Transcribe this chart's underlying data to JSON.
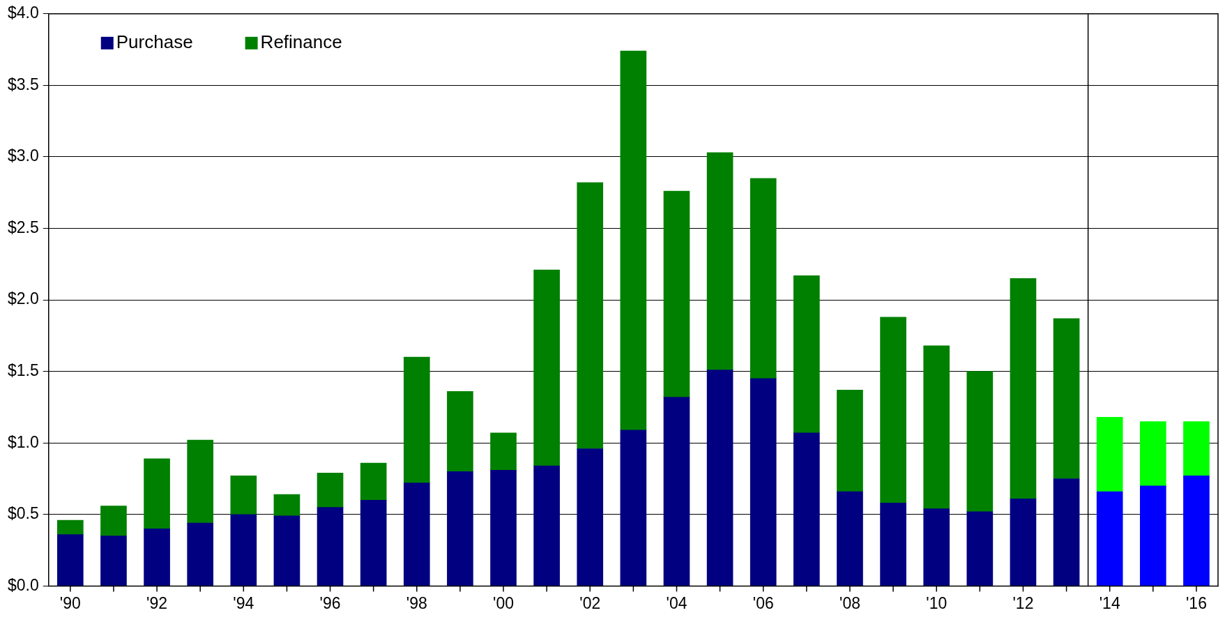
{
  "chart_data": {
    "type": "bar",
    "stacked": true,
    "x": [
      1990,
      1991,
      1992,
      1993,
      1994,
      1995,
      1996,
      1997,
      1998,
      1999,
      2000,
      2001,
      2002,
      2003,
      2004,
      2005,
      2006,
      2007,
      2008,
      2009,
      2010,
      2011,
      2012,
      2013,
      2014,
      2015,
      2016
    ],
    "xlim": [
      1989.5,
      2016.5
    ],
    "xticks": [
      {
        "value": 1990,
        "label": "'90"
      },
      {
        "value": 1991,
        "label": null
      },
      {
        "value": 1992,
        "label": "'92"
      },
      {
        "value": 1993,
        "label": null
      },
      {
        "value": 1994,
        "label": "'94"
      },
      {
        "value": 1995,
        "label": null
      },
      {
        "value": 1996,
        "label": "'96"
      },
      {
        "value": 1997,
        "label": null
      },
      {
        "value": 1998,
        "label": "'98"
      },
      {
        "value": 1999,
        "label": null
      },
      {
        "value": 2000,
        "label": "'00"
      },
      {
        "value": 2001,
        "label": null
      },
      {
        "value": 2002,
        "label": "'02"
      },
      {
        "value": 2003,
        "label": null
      },
      {
        "value": 2004,
        "label": "'04"
      },
      {
        "value": 2005,
        "label": null
      },
      {
        "value": 2006,
        "label": "'06"
      },
      {
        "value": 2007,
        "label": null
      },
      {
        "value": 2008,
        "label": "'08"
      },
      {
        "value": 2009,
        "label": null
      },
      {
        "value": 2010,
        "label": "'10"
      },
      {
        "value": 2011,
        "label": null
      },
      {
        "value": 2012,
        "label": "'12"
      },
      {
        "value": 2013,
        "label": null
      },
      {
        "value": 2014,
        "label": "'14"
      },
      {
        "value": 2015,
        "label": null
      },
      {
        "value": 2016,
        "label": "'16"
      }
    ],
    "series": [
      {
        "name": "Purchase",
        "color": "#000080",
        "colors": [
          "#000080",
          "#000080",
          "#000080",
          "#000080",
          "#000080",
          "#000080",
          "#000080",
          "#000080",
          "#000080",
          "#000080",
          "#000080",
          "#000080",
          "#000080",
          "#000080",
          "#000080",
          "#000080",
          "#000080",
          "#000080",
          "#000080",
          "#000080",
          "#000080",
          "#000080",
          "#000080",
          "#000080",
          "#0000ff",
          "#0000ff",
          "#0000ff"
        ],
        "values": [
          0.36,
          0.35,
          0.4,
          0.44,
          0.5,
          0.49,
          0.55,
          0.6,
          0.72,
          0.8,
          0.81,
          0.84,
          0.96,
          1.09,
          1.32,
          1.51,
          1.45,
          1.07,
          0.66,
          0.58,
          0.54,
          0.52,
          0.61,
          0.75,
          0.66,
          0.7,
          0.77
        ]
      },
      {
        "name": "Refinance",
        "color": "#008000",
        "colors": [
          "#008000",
          "#008000",
          "#008000",
          "#008000",
          "#008000",
          "#008000",
          "#008000",
          "#008000",
          "#008000",
          "#008000",
          "#008000",
          "#008000",
          "#008000",
          "#008000",
          "#008000",
          "#008000",
          "#008000",
          "#008000",
          "#008000",
          "#008000",
          "#008000",
          "#008000",
          "#008000",
          "#008000",
          "#00ff00",
          "#00ff00",
          "#00ff00"
        ],
        "values": [
          0.1,
          0.21,
          0.49,
          0.58,
          0.27,
          0.15,
          0.24,
          0.26,
          0.88,
          0.56,
          0.26,
          1.37,
          1.86,
          2.65,
          1.44,
          1.52,
          1.4,
          1.1,
          0.71,
          1.3,
          1.14,
          0.98,
          1.54,
          1.12,
          0.52,
          0.45,
          0.38
        ]
      }
    ],
    "ylim": [
      0,
      4
    ],
    "yticks": [
      {
        "value": 0,
        "label": "$0.0"
      },
      {
        "value": 0.5,
        "label": "$0.5"
      },
      {
        "value": 1,
        "label": "$1.0"
      },
      {
        "value": 1.5,
        "label": "$1.5"
      },
      {
        "value": 2,
        "label": "$2.0"
      },
      {
        "value": 2.5,
        "label": "$2.5"
      },
      {
        "value": 3,
        "label": "$3.0"
      },
      {
        "value": 3.5,
        "label": "$3.5"
      },
      {
        "value": 4,
        "label": "$4.0"
      }
    ],
    "ref_lines": [
      {
        "axis": "x",
        "value": 2013.5,
        "color": "#000000"
      }
    ],
    "grid": "y",
    "legend": "top left"
  }
}
